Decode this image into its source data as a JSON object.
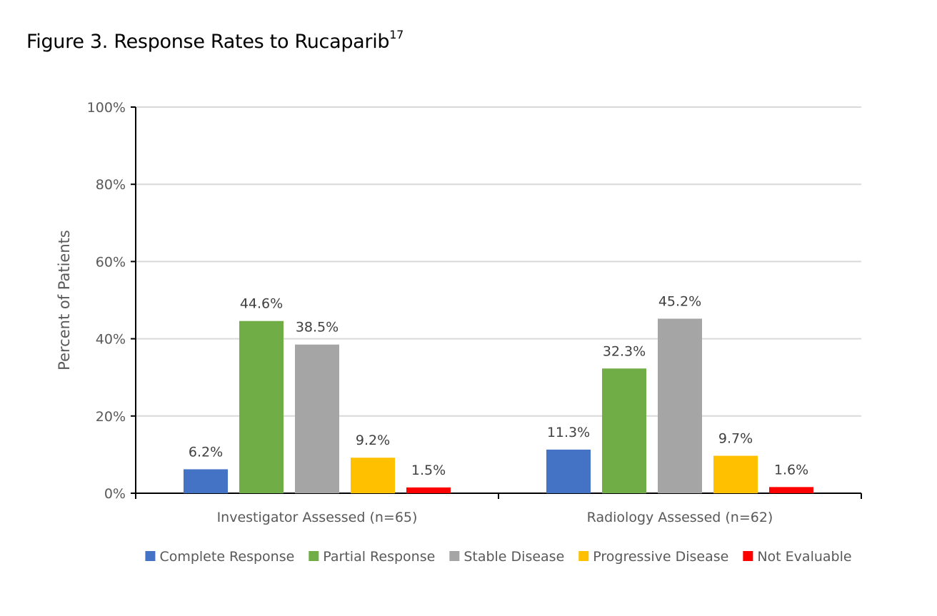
{
  "title": "Figure 3. Response Rates to Rucaparib",
  "title_superscript": "17",
  "chart_data": {
    "type": "bar",
    "title": "Figure 3. Response Rates to Rucaparib",
    "xlabel": "",
    "ylabel": "Percent of Patients",
    "ylim": [
      0,
      100
    ],
    "yticks": [
      "0%",
      "20%",
      "40%",
      "60%",
      "80%",
      "100%"
    ],
    "grid": true,
    "legend_position": "bottom",
    "categories": [
      "Investigator Assessed (n=65)",
      "Radiology Assessed (n=62)"
    ],
    "series": [
      {
        "name": "Complete Response",
        "color": "#4472C4",
        "values": [
          6.2,
          11.3
        ],
        "labels": [
          "6.2%",
          "11.3%"
        ]
      },
      {
        "name": "Partial Response",
        "color": "#70AD47",
        "values": [
          44.6,
          32.3
        ],
        "labels": [
          "44.6%",
          "32.3%"
        ]
      },
      {
        "name": "Stable Disease",
        "color": "#A5A5A5",
        "values": [
          38.5,
          45.2
        ],
        "labels": [
          "38.5%",
          "45.2%"
        ]
      },
      {
        "name": "Progressive Disease",
        "color": "#FFC000",
        "values": [
          9.2,
          9.7
        ],
        "labels": [
          "9.2%",
          "9.7%"
        ]
      },
      {
        "name": "Not Evaluable",
        "color": "#FF0000",
        "values": [
          1.5,
          1.6
        ],
        "labels": [
          "1.5%",
          "1.6%"
        ]
      }
    ]
  }
}
